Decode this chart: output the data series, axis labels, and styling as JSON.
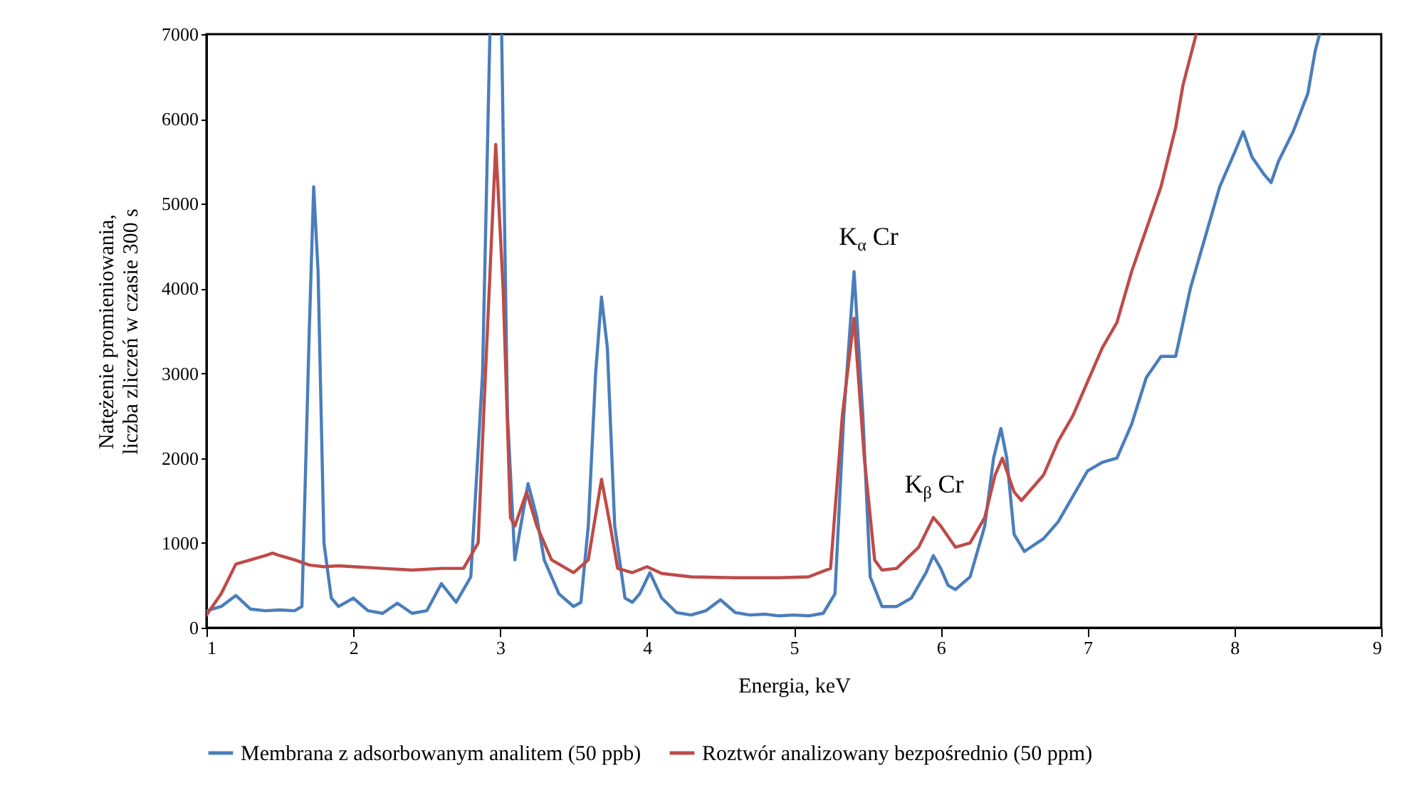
{
  "chart_data": {
    "type": "line",
    "xlabel": "Energia, keV",
    "ylabel": "Natężenie promieniowania,\nliczba zliczeń w czasie 300 s",
    "xlim": [
      1,
      9
    ],
    "xticks": [
      1,
      2,
      3,
      4,
      5,
      6,
      7,
      8,
      9
    ],
    "ylim": [
      0,
      7000
    ],
    "yticks": [
      0,
      1000,
      2000,
      3000,
      4000,
      5000,
      6000,
      7000
    ],
    "grid": false,
    "legend": "bottom",
    "marker": "none",
    "line_style": "solid",
    "annotations": [
      "K$_{α}$ Cr",
      "K$_{β}$ Cr"
    ],
    "series": [
      {
        "name": "Membrana z adsorbowanym analitem (50 ppb)",
        "color": "#4a7ebb",
        "x": [
          1.0,
          1.1,
          1.2,
          1.3,
          1.4,
          1.5,
          1.6,
          1.65,
          1.7,
          1.73,
          1.76,
          1.8,
          1.85,
          1.9,
          2.0,
          2.1,
          2.2,
          2.3,
          2.4,
          2.5,
          2.6,
          2.7,
          2.8,
          2.88,
          2.93,
          2.97,
          3.01,
          3.05,
          3.1,
          3.15,
          3.19,
          3.25,
          3.3,
          3.4,
          3.5,
          3.55,
          3.6,
          3.65,
          3.69,
          3.73,
          3.78,
          3.85,
          3.9,
          3.95,
          4.02,
          4.1,
          4.2,
          4.3,
          4.4,
          4.5,
          4.6,
          4.7,
          4.8,
          4.9,
          5.0,
          5.1,
          5.2,
          5.28,
          5.34,
          5.41,
          5.47,
          5.52,
          5.6,
          5.7,
          5.8,
          5.9,
          5.95,
          6.0,
          6.05,
          6.1,
          6.2,
          6.3,
          6.36,
          6.41,
          6.45,
          6.5,
          6.57,
          6.7,
          6.8,
          6.9,
          7.0,
          7.1,
          7.2,
          7.3,
          7.4,
          7.5,
          7.6,
          7.7,
          7.8,
          7.9,
          8.0,
          8.06,
          8.12,
          8.2,
          8.25,
          8.3,
          8.4,
          8.5,
          8.55,
          8.58
        ],
        "values": [
          200,
          250,
          380,
          220,
          200,
          210,
          200,
          250,
          3500,
          5200,
          4200,
          1000,
          350,
          250,
          350,
          200,
          170,
          290,
          170,
          200,
          520,
          300,
          600,
          3000,
          7000,
          null,
          7000,
          2500,
          800,
          1300,
          1700,
          1300,
          800,
          400,
          250,
          300,
          1200,
          3000,
          3900,
          3300,
          1200,
          350,
          300,
          400,
          650,
          350,
          180,
          150,
          200,
          330,
          180,
          150,
          160,
          140,
          150,
          140,
          170,
          400,
          2500,
          4200,
          2500,
          600,
          250,
          250,
          350,
          650,
          850,
          700,
          500,
          450,
          600,
          1200,
          2000,
          2350,
          2000,
          1100,
          900,
          1050,
          1250,
          1550,
          1850,
          1950,
          2000,
          2400,
          2950,
          3200,
          3200,
          4000,
          4600,
          5200,
          5600,
          5850,
          5550,
          5350,
          5250,
          5500,
          5850,
          6300,
          6800,
          7000
        ]
      },
      {
        "name": "Roztwór analizowany bezpośrednio (50 ppm)",
        "color": "#be4b48",
        "x": [
          1.0,
          1.1,
          1.2,
          1.3,
          1.4,
          1.45,
          1.5,
          1.6,
          1.7,
          1.8,
          1.9,
          2.0,
          2.2,
          2.4,
          2.6,
          2.75,
          2.85,
          2.9,
          2.97,
          3.02,
          3.07,
          3.1,
          3.18,
          3.25,
          3.35,
          3.5,
          3.6,
          3.69,
          3.75,
          3.8,
          3.9,
          4.0,
          4.1,
          4.3,
          4.6,
          4.9,
          5.1,
          5.25,
          5.33,
          5.41,
          5.48,
          5.55,
          5.6,
          5.7,
          5.85,
          5.95,
          6.0,
          6.1,
          6.2,
          6.3,
          6.37,
          6.42,
          6.5,
          6.55,
          6.7,
          6.8,
          6.9,
          7.0,
          7.1,
          7.2,
          7.3,
          7.4,
          7.5,
          7.6,
          7.65,
          7.74
        ],
        "values": [
          150,
          400,
          750,
          800,
          850,
          880,
          850,
          800,
          740,
          720,
          730,
          720,
          700,
          680,
          700,
          700,
          1000,
          3000,
          5700,
          4000,
          1300,
          1200,
          1600,
          1200,
          800,
          650,
          800,
          1750,
          1200,
          700,
          650,
          720,
          640,
          600,
          590,
          590,
          600,
          700,
          2500,
          3650,
          2000,
          800,
          680,
          700,
          950,
          1300,
          1200,
          950,
          1000,
          1300,
          1800,
          2000,
          1600,
          1500,
          1800,
          2200,
          2500,
          2900,
          3300,
          3600,
          4200,
          4700,
          5200,
          5900,
          6400,
          7000
        ]
      }
    ]
  }
}
